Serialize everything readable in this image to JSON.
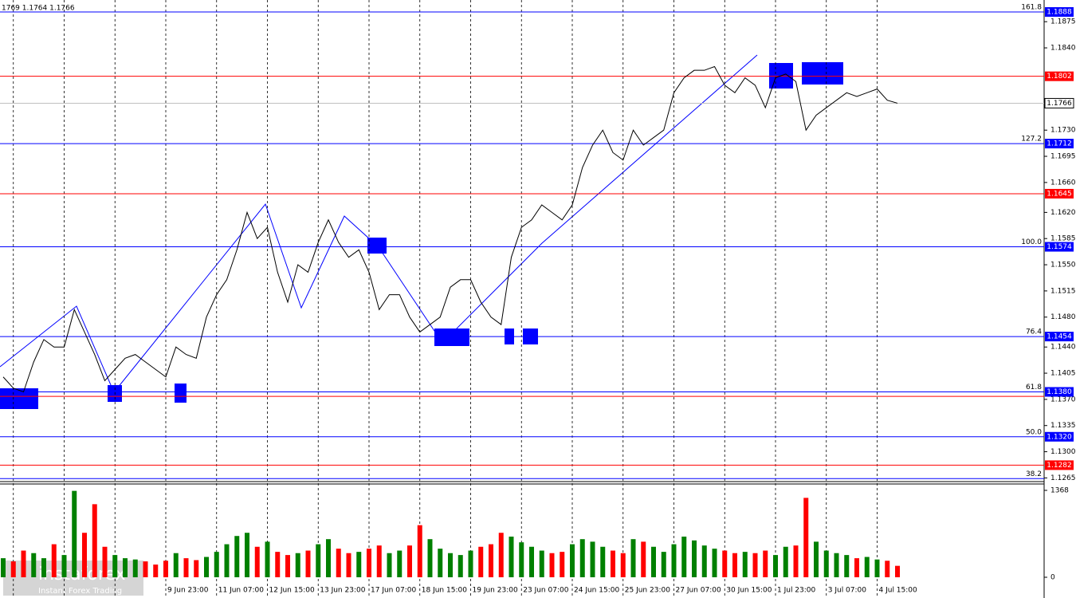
{
  "header": {
    "quote": "1769 1.1764 1.1766"
  },
  "watermark": {
    "brand": "instaforex",
    "tagline": "Instant Forex Trading"
  },
  "chart_data": {
    "type": "line",
    "color": "#000000",
    "categories": [
      null,
      null,
      null,
      null,
      null,
      null,
      null,
      null,
      null,
      null,
      null,
      null,
      null,
      null,
      null,
      null,
      "9 Jun 23:00",
      null,
      null,
      null,
      null,
      "11 Jun 07:00",
      null,
      null,
      null,
      null,
      "12 Jun 15:00",
      null,
      null,
      null,
      null,
      "13 Jun 23:00",
      null,
      null,
      null,
      null,
      "17 Jun 07:00",
      null,
      null,
      null,
      null,
      "18 Jun 15:00",
      null,
      null,
      null,
      null,
      "19 Jun 23:00",
      null,
      null,
      null,
      null,
      "23 Jun 07:00",
      null,
      null,
      null,
      null,
      "24 Jun 15:00",
      null,
      null,
      null,
      null,
      "25 Jun 23:00",
      null,
      null,
      null,
      null,
      "27 Jun 07:00",
      null,
      null,
      null,
      null,
      "30 Jun 15:00",
      null,
      null,
      null,
      null,
      "1 Jul 23:00",
      null,
      null,
      null,
      null,
      "3 Jul 07:00",
      null,
      null,
      null,
      null,
      "4 Jul 15:00",
      null,
      null
    ],
    "values": [
      1.14,
      1.1385,
      1.138,
      1.142,
      1.145,
      1.144,
      1.144,
      1.149,
      1.146,
      1.143,
      1.1395,
      1.141,
      1.1425,
      1.143,
      1.142,
      1.141,
      1.14,
      1.144,
      1.143,
      1.1425,
      1.148,
      1.151,
      1.153,
      1.157,
      1.162,
      1.1585,
      1.16,
      1.154,
      1.15,
      1.155,
      1.154,
      1.158,
      1.161,
      1.158,
      1.156,
      1.157,
      1.154,
      1.149,
      1.151,
      1.151,
      1.148,
      1.146,
      1.147,
      1.148,
      1.152,
      1.153,
      1.153,
      1.15,
      1.148,
      1.147,
      1.156,
      1.16,
      1.161,
      1.163,
      1.162,
      1.161,
      1.163,
      1.168,
      1.171,
      1.173,
      1.17,
      1.169,
      1.173,
      1.171,
      1.172,
      1.173,
      1.178,
      1.18,
      1.181,
      1.181,
      1.1815,
      1.179,
      1.178,
      1.18,
      1.179,
      1.176,
      1.18,
      1.1805,
      1.1795,
      1.173,
      1.175,
      1.176,
      1.177,
      1.178,
      1.1775,
      1.178,
      1.1785,
      1.177,
      1.1766
    ],
    "volume": [
      300,
      250,
      420,
      380,
      300,
      520,
      350,
      1360,
      700,
      1150,
      480,
      350,
      300,
      280,
      250,
      200,
      260,
      380,
      300,
      270,
      320,
      400,
      520,
      650,
      700,
      480,
      560,
      400,
      350,
      380,
      420,
      520,
      600,
      450,
      380,
      400,
      450,
      500,
      380,
      420,
      500,
      820,
      600,
      450,
      380,
      350,
      420,
      480,
      520,
      700,
      640,
      550,
      480,
      420,
      380,
      400,
      520,
      600,
      560,
      480,
      420,
      380,
      600,
      560,
      480,
      400,
      520,
      640,
      580,
      500,
      450,
      420,
      380,
      400,
      380,
      420,
      350,
      480,
      500,
      1250,
      560,
      420,
      380,
      350,
      300,
      320,
      280,
      260,
      180
    ],
    "volume_ylim": [
      0,
      1368
    ],
    "volume_ticks": [
      1368,
      0
    ],
    "up_color": "#008000",
    "down_color": "#ff0000",
    "ylim": [
      1.1259,
      1.1904
    ],
    "yticks": [
      1.1875,
      {
        "value": 1.184,
        "label": "1.1840"
      },
      {
        "value": 1.173,
        "label": "1.1730"
      },
      1.1695,
      {
        "value": 1.166,
        "label": "1.1660"
      },
      {
        "value": 1.162,
        "label": "1.1620"
      },
      1.1585,
      {
        "value": 1.155,
        "label": "1.1550"
      },
      1.1515,
      {
        "value": 1.148,
        "label": "1.1480"
      },
      {
        "value": 1.144,
        "label": "1.1440"
      },
      1.1405,
      {
        "value": 1.137,
        "label": "1.1370"
      },
      1.1335,
      {
        "value": 1.13,
        "label": "1.1300"
      },
      1.1265
    ],
    "grid": true,
    "levels": [
      {
        "price": 1.1888,
        "price_label": "1.1888",
        "fib": "161.8",
        "color": "#0000ff"
      },
      {
        "price": 1.1802,
        "price_label": "1.1802",
        "color": "#ff0000"
      },
      {
        "price": 1.1766,
        "price_label": "1.1766",
        "color": "#c0c0c0"
      },
      {
        "price": 1.1712,
        "price_label": "1.1712",
        "fib": "127.2",
        "color": "#0000ff"
      },
      {
        "price": 1.1645,
        "price_label": "1.1645",
        "color": "#ff0000"
      },
      {
        "price": 1.1574,
        "price_label": "1.1574",
        "fib": "100.0",
        "color": "#0000ff"
      },
      {
        "price": 1.1454,
        "price_label": "1.1454",
        "fib": "76.4",
        "color": "#0000ff"
      },
      {
        "price": 1.138,
        "price_label": "1.1380",
        "fib": "61.8",
        "color": "#0000ff"
      },
      {
        "price": 1.1374,
        "color": "#ff0000"
      },
      {
        "price": 1.132,
        "price_label": "1.1320",
        "fib": "50.0",
        "color": "#0000ff"
      },
      {
        "price": 1.1282,
        "price_label": "1.1282",
        "color": "#ff0000"
      },
      {
        "price": 1.1264,
        "fib": "38.2",
        "color": "#0000ff"
      }
    ]
  }
}
